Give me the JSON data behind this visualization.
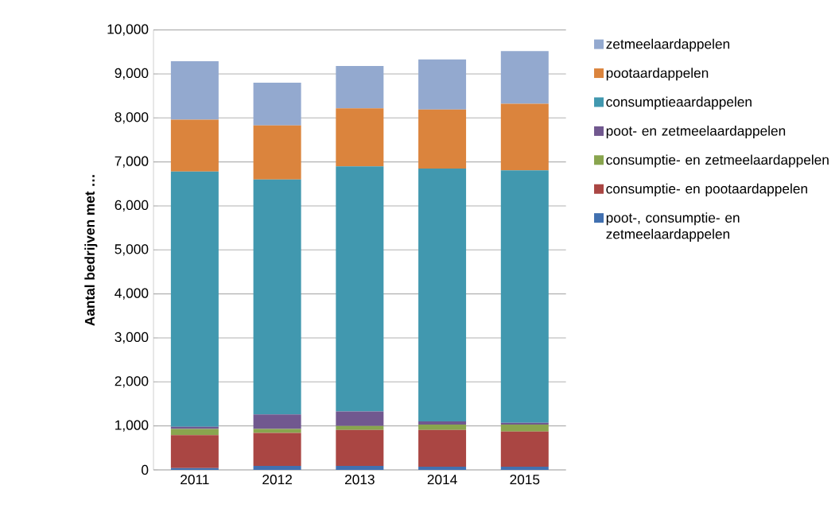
{
  "chart_data": {
    "type": "bar",
    "stacked": true,
    "ylabel": "Aantal bedrijven met …",
    "categories": [
      "2011",
      "2012",
      "2013",
      "2014",
      "2015"
    ],
    "series": [
      {
        "name": "poot-, consumptie- en zetmeelaardappelen",
        "color": "#4170b0",
        "values": [
          40,
          90,
          90,
          70,
          70
        ]
      },
      {
        "name": "consumptie- en pootaardappelen",
        "color": "#aa4643",
        "values": [
          750,
          750,
          820,
          840,
          800
        ]
      },
      {
        "name": "consumptie- en zetmeelaardappelen",
        "color": "#89a54e",
        "values": [
          140,
          90,
          90,
          120,
          160
        ]
      },
      {
        "name": "poot- en zetmeelaardappelen",
        "color": "#71588f",
        "values": [
          50,
          330,
          330,
          70,
          40
        ]
      },
      {
        "name": "consumptieaardappelen",
        "color": "#4198af",
        "values": [
          5800,
          5340,
          5570,
          5750,
          5740
        ]
      },
      {
        "name": "pootaardappelen",
        "color": "#db843d",
        "values": [
          1180,
          1230,
          1320,
          1340,
          1510
        ]
      },
      {
        "name": "zetmeelaardappelen",
        "color": "#93a9cf",
        "values": [
          1330,
          970,
          960,
          1140,
          1200
        ]
      }
    ],
    "ylim": [
      0,
      10000
    ],
    "yticks": [
      {
        "value": 0,
        "label": "0"
      },
      {
        "value": 1000,
        "label": "1,000"
      },
      {
        "value": 2000,
        "label": "2,000"
      },
      {
        "value": 3000,
        "label": "3,000"
      },
      {
        "value": 4000,
        "label": "4,000"
      },
      {
        "value": 5000,
        "label": "5,000"
      },
      {
        "value": 6000,
        "label": "6,000"
      },
      {
        "value": 7000,
        "label": "7,000"
      },
      {
        "value": 8000,
        "label": "8,000"
      },
      {
        "value": 9000,
        "label": "9,000"
      },
      {
        "value": 10000,
        "label": "10,000"
      }
    ],
    "grid": "y",
    "legend": "right"
  }
}
